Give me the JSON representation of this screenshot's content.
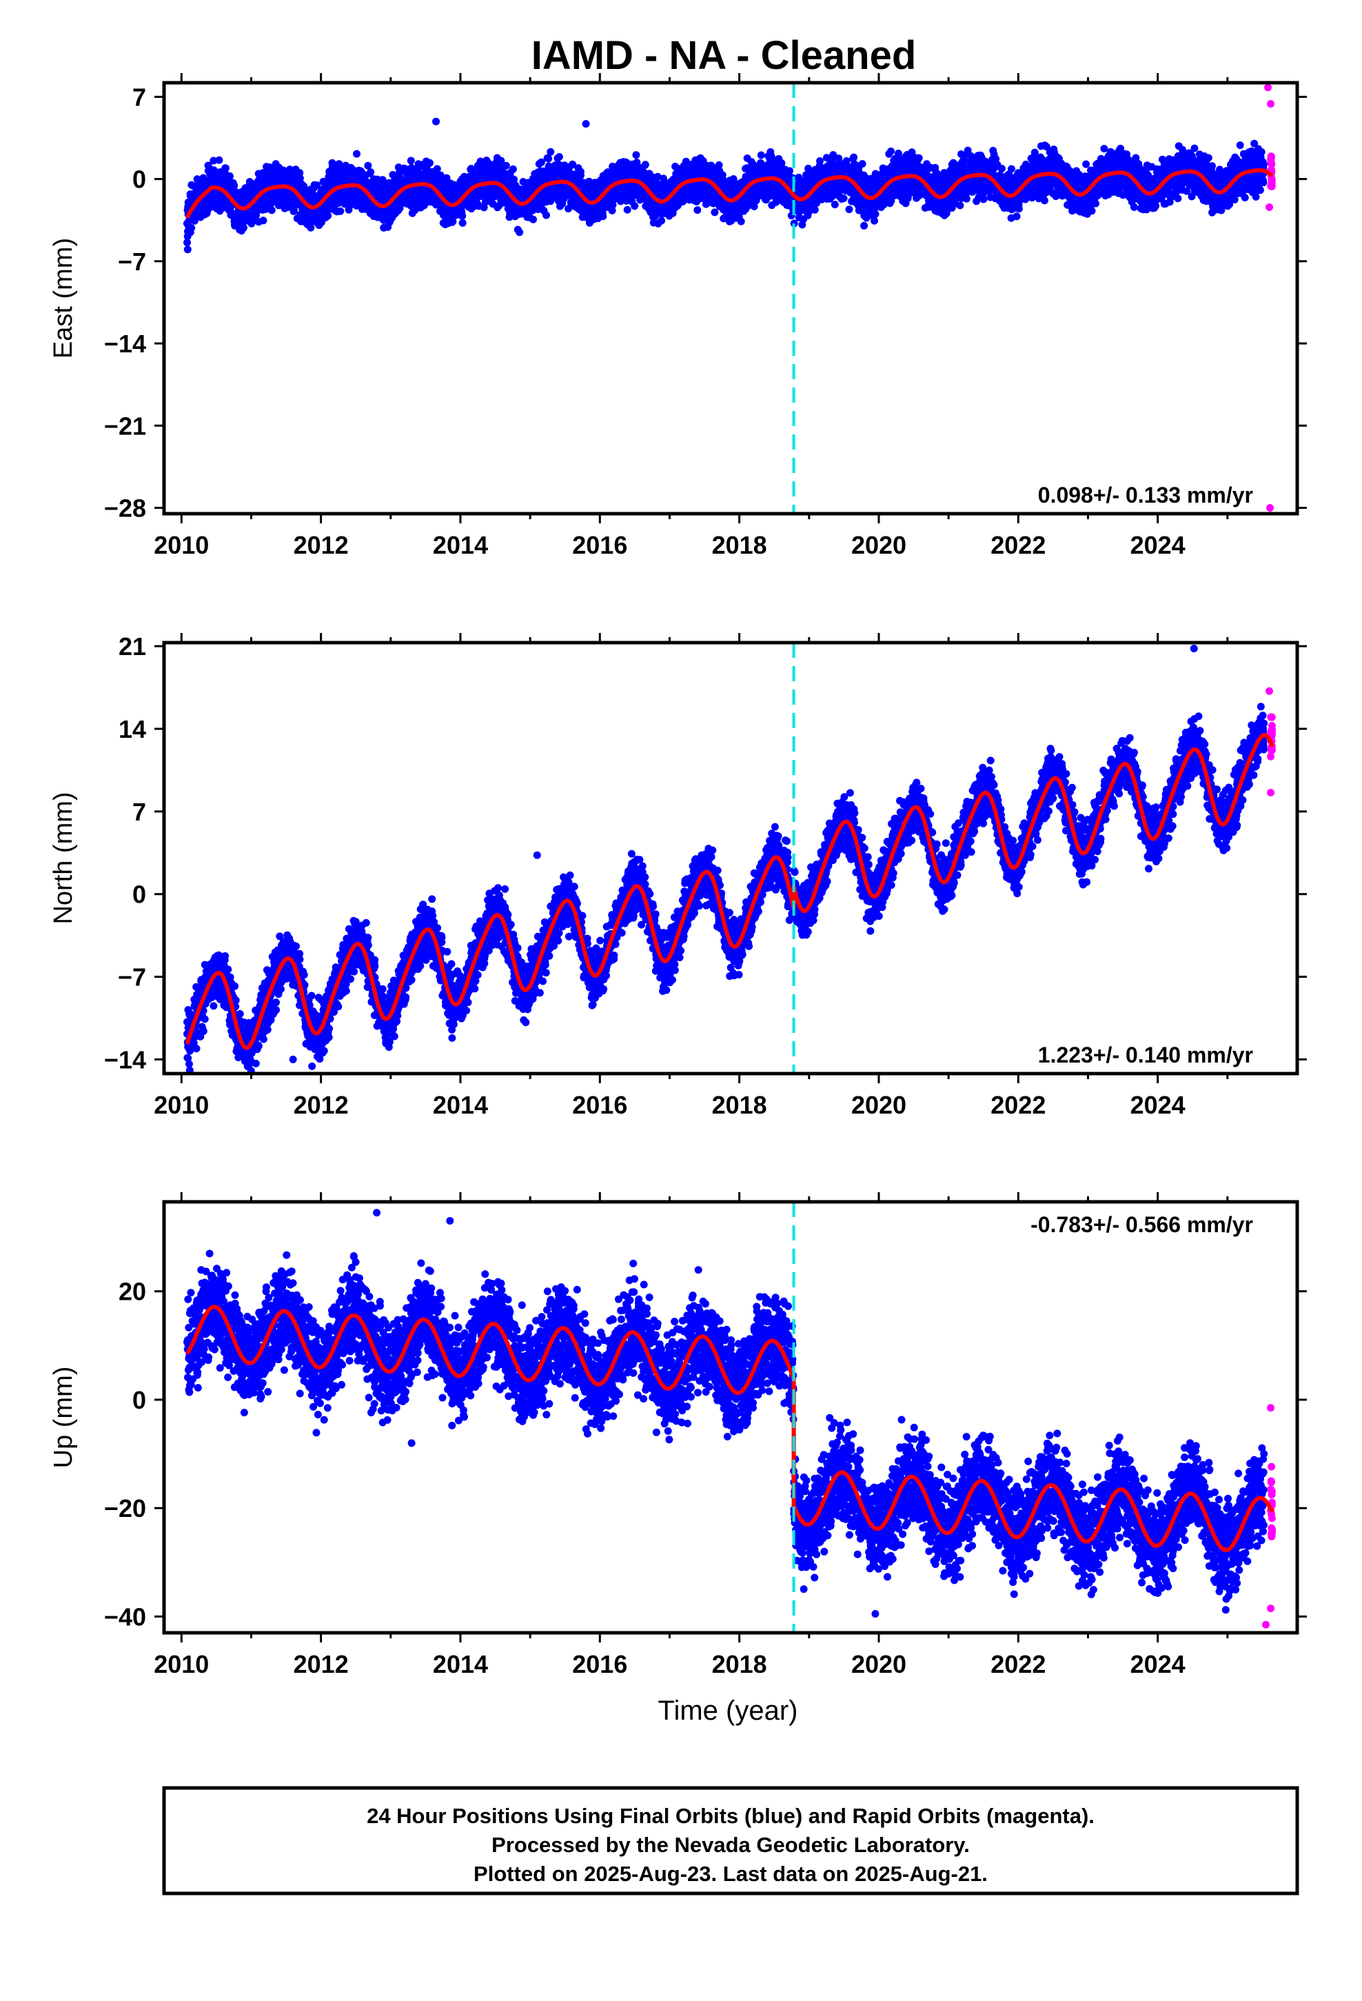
{
  "title": "IAMD  - NA - Cleaned",
  "footer": {
    "line1": "24 Hour Positions Using Final Orbits (blue) and Rapid Orbits (magenta).",
    "line2": "Processed by the Nevada Geodetic Laboratory.",
    "line3": "Plotted on 2025-Aug-23. Last data on 2025-Aug-21."
  },
  "colors": {
    "final_orbits": "#0000ff",
    "rapid_orbits": "#ff00ff",
    "model_fit": "#ff0000",
    "equipment_change": "#00e5e5"
  },
  "chart_data": [
    {
      "type": "scatter",
      "panel": "east",
      "title": "IAMD  - NA - Cleaned",
      "xlabel": "",
      "ylabel": "East (mm)",
      "xlim": [
        2009.75,
        2026.0
      ],
      "ylim": [
        -28.5,
        8.2
      ],
      "xticks": [
        2010,
        2012,
        2014,
        2016,
        2018,
        2020,
        2022,
        2024
      ],
      "xtick_labels": [
        "2010",
        "2012",
        "2014",
        "2016",
        "2018",
        "2020",
        "2022",
        "2024"
      ],
      "yticks": [
        7,
        0,
        -7,
        -14,
        -21,
        -28
      ],
      "ytick_labels": [
        "7",
        "0",
        "−7",
        "−14",
        "−21",
        "−28"
      ],
      "grid": false,
      "rate_label": "0.098+/- 0.133 mm/yr",
      "rate_position": "bottom-right",
      "equipment_change_year": 2018.78,
      "data_span": [
        2010.08,
        2025.64
      ],
      "rapid_span": [
        2025.52,
        2025.64
      ],
      "model": {
        "offset": -1.5,
        "rate": 0.098,
        "annual_amp": 0.9,
        "annual_phase": 0.5,
        "semiannual_amp": 0.2,
        "step": 0.0,
        "start_drift": [
          -1.6,
          0.35
        ],
        "scatter": 0.9,
        "max_dev": 3.7
      },
      "outliers": [
        {
          "x": 2025.61,
          "y": -28.0
        },
        {
          "x": 2025.58,
          "y": 7.8
        },
        {
          "x": 2025.62,
          "y": 6.4
        },
        {
          "x": 2025.6,
          "y": -2.4
        },
        {
          "x": 2013.65,
          "y": 4.9
        },
        {
          "x": 2015.8,
          "y": 4.7
        }
      ]
    },
    {
      "type": "scatter",
      "panel": "north",
      "xlabel": "",
      "ylabel": "North (mm)",
      "xlim": [
        2009.75,
        2026.0
      ],
      "ylim": [
        -15.2,
        21.3
      ],
      "xticks": [
        2010,
        2012,
        2014,
        2016,
        2018,
        2020,
        2022,
        2024
      ],
      "xtick_labels": [
        "2010",
        "2012",
        "2014",
        "2016",
        "2018",
        "2020",
        "2022",
        "2024"
      ],
      "yticks": [
        21,
        14,
        7,
        0,
        -7,
        -14
      ],
      "ytick_labels": [
        "21",
        "14",
        "7",
        "0",
        "−7",
        "−14"
      ],
      "grid": false,
      "rate_label": "1.223+/- 0.140 mm/yr",
      "rate_position": "bottom-right",
      "equipment_change_year": 2018.78,
      "data_span": [
        2010.08,
        2025.64
      ],
      "rapid_span": [
        2025.52,
        2025.64
      ],
      "model": {
        "offset": -10.6,
        "rate": 1.223,
        "annual_amp": 3.3,
        "annual_phase": 0.0,
        "semiannual_amp": 0.5,
        "step": 1.8,
        "start_drift": [
          0.0,
          0.3
        ],
        "scatter": 1.1,
        "max_dev": 4.0
      },
      "outliers": [
        {
          "x": 2015.1,
          "y": 3.3
        },
        {
          "x": 2024.52,
          "y": 20.8
        },
        {
          "x": 2025.62,
          "y": 8.6
        },
        {
          "x": 2025.6,
          "y": 17.2
        },
        {
          "x": 2011.6,
          "y": -14.0
        }
      ]
    },
    {
      "type": "scatter",
      "panel": "up",
      "xlabel": "Time (year)",
      "ylabel": "Up (mm)",
      "xlim": [
        2009.75,
        2026.0
      ],
      "ylim": [
        -43.0,
        36.5
      ],
      "xticks": [
        2010,
        2012,
        2014,
        2016,
        2018,
        2020,
        2022,
        2024
      ],
      "xtick_labels": [
        "2010",
        "2012",
        "2014",
        "2016",
        "2018",
        "2020",
        "2022",
        "2024"
      ],
      "yticks": [
        20,
        0,
        -20,
        -40
      ],
      "ytick_labels": [
        "20",
        "0",
        "−20",
        "−40"
      ],
      "grid": false,
      "rate_label": "-0.783+/- 0.566 mm/yr",
      "rate_position": "top-right",
      "equipment_change_year": 2018.78,
      "data_span": [
        2010.08,
        2025.64
      ],
      "rapid_span": [
        2025.52,
        2025.64
      ],
      "model": {
        "offset": 12.5,
        "rate": -0.783,
        "annual_amp": 5.0,
        "annual_phase": 0.0,
        "semiannual_amp": 0.0,
        "step": -23.5,
        "start_drift": [
          0.0,
          0.3
        ],
        "scatter": 4.2,
        "max_dev": 14.0
      },
      "outliers": [
        {
          "x": 2012.8,
          "y": 34.5
        },
        {
          "x": 2013.85,
          "y": 33.0
        },
        {
          "x": 2013.3,
          "y": -8.0
        },
        {
          "x": 2019.95,
          "y": -39.5
        },
        {
          "x": 2025.55,
          "y": -41.5
        },
        {
          "x": 2025.62,
          "y": -1.5
        },
        {
          "x": 2025.62,
          "y": -38.5
        }
      ]
    }
  ]
}
